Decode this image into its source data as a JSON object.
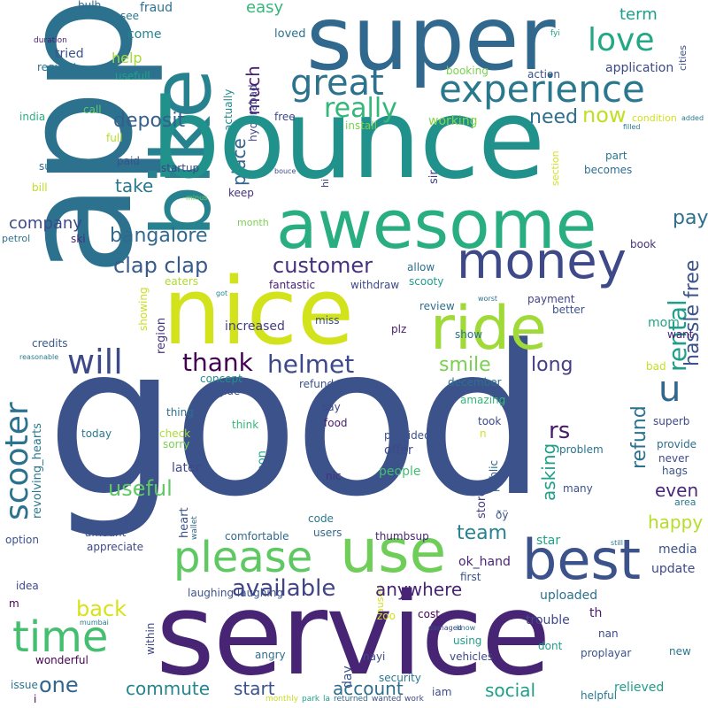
{
  "words": [
    {
      "text": "good",
      "color": "#3b528b"
    },
    {
      "text": "app",
      "color": "#2c728e"
    },
    {
      "text": "bounce",
      "color": "#21918c"
    },
    {
      "text": "service",
      "color": "#482475"
    },
    {
      "text": "super",
      "color": "#31688e"
    },
    {
      "text": "awesome",
      "color": "#28ae80"
    },
    {
      "text": "nice",
      "color": "#d2e21b"
    },
    {
      "text": "bike",
      "color": "#26828e"
    },
    {
      "text": "ride",
      "color": "#a0da39"
    },
    {
      "text": "money",
      "color": "#3e4989"
    },
    {
      "text": "use",
      "color": "#6ece58"
    },
    {
      "text": "best",
      "color": "#3b528b"
    },
    {
      "text": "please",
      "color": "#5ec962"
    },
    {
      "text": "time",
      "color": "#44bf70"
    },
    {
      "text": "experience",
      "color": "#2a788e"
    },
    {
      "text": "great",
      "color": "#2c728e"
    },
    {
      "text": "love",
      "color": "#22a884"
    },
    {
      "text": "will",
      "color": "#3e4989"
    },
    {
      "text": "scooter",
      "color": "#2c728e"
    },
    {
      "text": "bangalore",
      "color": "#31688e"
    },
    {
      "text": "clap clap",
      "color": "#375b8d"
    },
    {
      "text": "customer",
      "color": "#46327e"
    },
    {
      "text": "available",
      "color": "#414487"
    },
    {
      "text": "u",
      "color": "#31688e"
    },
    {
      "text": "rental",
      "color": "#1f9e89"
    },
    {
      "text": "hassle free",
      "color": "#3b528b"
    },
    {
      "text": "thank",
      "color": "#440154"
    },
    {
      "text": "helmet",
      "color": "#3e4989"
    },
    {
      "text": "really",
      "color": "#35b779"
    },
    {
      "text": "deposit",
      "color": "#355f8d"
    },
    {
      "text": "now",
      "color": "#c2df23"
    },
    {
      "text": "need",
      "color": "#2e6f8e"
    },
    {
      "text": "pay",
      "color": "#2e6f8e"
    },
    {
      "text": "company",
      "color": "#3e4989"
    },
    {
      "text": "take",
      "color": "#2a788e"
    },
    {
      "text": "much",
      "color": "#481f70"
    },
    {
      "text": "place",
      "color": "#32648e"
    },
    {
      "text": "smile",
      "color": "#7ad151"
    },
    {
      "text": "long",
      "color": "#433e85"
    },
    {
      "text": "useful",
      "color": "#5ec962"
    },
    {
      "text": "one",
      "color": "#32648e"
    },
    {
      "text": "back",
      "color": "#d8e219"
    },
    {
      "text": "team",
      "color": "#26828e"
    },
    {
      "text": "rs",
      "color": "#481a6c"
    },
    {
      "text": "refund",
      "color": "#2c728e"
    },
    {
      "text": "happy",
      "color": "#b5de2b"
    },
    {
      "text": "anywhere",
      "color": "#482475"
    },
    {
      "text": "commute",
      "color": "#25858e"
    },
    {
      "text": "start",
      "color": "#3b528b"
    },
    {
      "text": "account",
      "color": "#2e6f8e"
    },
    {
      "text": "social",
      "color": "#1f9e89"
    },
    {
      "text": "easy",
      "color": "#35b779"
    },
    {
      "text": "term",
      "color": "#1f9e89"
    },
    {
      "text": "help",
      "color": "#a5db36"
    },
    {
      "text": "fraud",
      "color": "#2c728e"
    },
    {
      "text": "bulb",
      "color": "#31688e"
    },
    {
      "text": "see",
      "color": "#2a788e"
    },
    {
      "text": "come",
      "color": "#25858e"
    },
    {
      "text": "tried",
      "color": "#3b528b"
    },
    {
      "text": "request",
      "color": "#2c728e"
    },
    {
      "text": "usefull",
      "color": "#1fa188"
    },
    {
      "text": "duration",
      "color": "#481f70"
    },
    {
      "text": "india",
      "color": "#29af7f"
    },
    {
      "text": "call",
      "color": "#5ec962"
    },
    {
      "text": "full",
      "color": "#b5de2b"
    },
    {
      "text": "paid",
      "color": "#3b528b"
    },
    {
      "text": "support",
      "color": "#2e6f8e"
    },
    {
      "text": "bill",
      "color": "#bddf26"
    },
    {
      "text": "startup",
      "color": "#414487"
    },
    {
      "text": "keep",
      "color": "#46337e"
    },
    {
      "text": "minus",
      "color": "#6ece58"
    },
    {
      "text": "month",
      "color": "#7ad151"
    },
    {
      "text": "ski",
      "color": "#482878"
    },
    {
      "text": "petrol",
      "color": "#2c728e"
    },
    {
      "text": "cities",
      "color": "#3b528b"
    },
    {
      "text": "fyi",
      "color": "#20a386"
    },
    {
      "text": "allow",
      "color": "#2e6f8e"
    },
    {
      "text": "booking",
      "color": "#7ad151"
    },
    {
      "text": "action",
      "color": "#3b528b"
    },
    {
      "text": "application",
      "color": "#3e4989"
    },
    {
      "text": "working",
      "color": "#86d549"
    },
    {
      "text": "condition",
      "color": "#d2e21b"
    },
    {
      "text": "install",
      "color": "#7ad151"
    },
    {
      "text": "filled",
      "color": "#2a788e"
    },
    {
      "text": "added",
      "color": "#2a788e"
    },
    {
      "text": "free",
      "color": "#3e4989"
    },
    {
      "text": "loved",
      "color": "#2c728e"
    },
    {
      "text": "hyderabad",
      "color": "#404688"
    },
    {
      "text": "actually",
      "color": "#238a8d"
    },
    {
      "text": "sir",
      "color": "#433e85"
    },
    {
      "text": "hi",
      "color": "#414487"
    },
    {
      "text": "bouce",
      "color": "#3e4989"
    },
    {
      "text": "section",
      "color": "#d2e21b"
    },
    {
      "text": "part",
      "color": "#2a788e"
    },
    {
      "text": "becomes",
      "color": "#2e6f8e"
    },
    {
      "text": "book",
      "color": "#46337e"
    },
    {
      "text": "eaters",
      "color": "#addc30"
    },
    {
      "text": "fantastic",
      "color": "#482173"
    },
    {
      "text": "withdraw",
      "color": "#3e4989"
    },
    {
      "text": "scooty",
      "color": "#1f9e89"
    },
    {
      "text": "got",
      "color": "#25858e"
    },
    {
      "text": "monthly",
      "color": "#c8e020"
    },
    {
      "text": "showing",
      "color": "#46337e"
    },
    {
      "text": "region",
      "color": "#2c728e"
    },
    {
      "text": "worst",
      "color": "#414487"
    },
    {
      "text": "payment",
      "color": "#2e6f8e"
    },
    {
      "text": "review",
      "color": "#3b528b"
    },
    {
      "text": "better",
      "color": "#3b528b"
    },
    {
      "text": "miss",
      "color": "#481a6c"
    },
    {
      "text": "plz",
      "color": "#2c728e"
    },
    {
      "text": "show",
      "color": "#20a386"
    },
    {
      "text": "mom",
      "color": "#481f70"
    },
    {
      "text": "want",
      "color": "#c2df23"
    },
    {
      "text": "bad",
      "color": "#433e85"
    },
    {
      "text": "increased",
      "color": "#375b8d"
    },
    {
      "text": "credits",
      "color": "#2a788e"
    },
    {
      "text": "reasonable",
      "color": "#21918c"
    },
    {
      "text": "concept",
      "color": "#3b528b"
    },
    {
      "text": "refunded",
      "color": "#2e6f8e"
    },
    {
      "text": "december",
      "color": "#2a788e"
    },
    {
      "text": "revolving_hearts",
      "color": "#2a788e"
    },
    {
      "text": "agide",
      "color": "#3b528b"
    },
    {
      "text": "thing",
      "color": "#2e6f8e"
    },
    {
      "text": "say",
      "color": "#3e4989"
    },
    {
      "text": "amazing",
      "color": "#35b779"
    },
    {
      "text": "superb",
      "color": "#3e4989"
    },
    {
      "text": "check",
      "color": "#addc30"
    },
    {
      "text": "sorry",
      "color": "#7ad151"
    },
    {
      "text": "today",
      "color": "#2a788e"
    },
    {
      "text": "think",
      "color": "#35b779"
    },
    {
      "text": "food",
      "color": "#481a6c"
    },
    {
      "text": "took",
      "color": "#3e4989"
    },
    {
      "text": "n",
      "color": "#d2e21b"
    },
    {
      "text": "provided",
      "color": "#3b528b"
    },
    {
      "text": "offer",
      "color": "#3e4989"
    },
    {
      "text": "provide",
      "color": "#2e6f8e"
    },
    {
      "text": "hags",
      "color": "#3b528b"
    },
    {
      "text": "problem",
      "color": "#2c728e"
    },
    {
      "text": "later",
      "color": "#3e4989"
    },
    {
      "text": "park",
      "color": "#20a386"
    },
    {
      "text": "people",
      "color": "#44bf70"
    },
    {
      "text": "la",
      "color": "#1f9e89"
    },
    {
      "text": "returned",
      "color": "#31688e"
    },
    {
      "text": "never",
      "color": "#3e4989"
    },
    {
      "text": "soon",
      "color": "#440154"
    },
    {
      "text": "nic",
      "color": "#46327e"
    },
    {
      "text": "asking",
      "color": "#3e4989"
    },
    {
      "text": "public",
      "color": "#3b528b"
    },
    {
      "text": "many",
      "color": "#433e85"
    },
    {
      "text": "heart",
      "color": "#2a788e"
    },
    {
      "text": "area",
      "color": "#3b528b"
    },
    {
      "text": "store",
      "color": "#2a788e"
    },
    {
      "text": "code",
      "color": "#31688e"
    },
    {
      "text": "users",
      "color": "#3b528b"
    },
    {
      "text": "ðÿ",
      "color": "#482878"
    },
    {
      "text": "wallet",
      "color": "#31688e"
    },
    {
      "text": "even",
      "color": "#3b528b"
    },
    {
      "text": "amount",
      "color": "#3e4989"
    },
    {
      "text": "appreciate",
      "color": "#31688e"
    },
    {
      "text": "comfortable",
      "color": "#482475"
    },
    {
      "text": "thumbsup",
      "color": "#1fa188"
    },
    {
      "text": "star",
      "color": "#2a788e"
    },
    {
      "text": "still",
      "color": "#3b528b"
    },
    {
      "text": "media",
      "color": "#3b528b"
    },
    {
      "text": "option",
      "color": "#3e4989"
    },
    {
      "text": "update",
      "color": "#482475"
    },
    {
      "text": "ok_hand",
      "color": "#3b528b"
    },
    {
      "text": "first",
      "color": "#3e4989"
    },
    {
      "text": "idea",
      "color": "#3b528b"
    },
    {
      "text": "laughing laughing",
      "color": "#2c728e"
    },
    {
      "text": "uploaded",
      "color": "#440154"
    },
    {
      "text": "m",
      "color": "#481a6c"
    },
    {
      "text": "th",
      "color": "#d2e21b"
    },
    {
      "text": "zoo",
      "color": "#440154"
    },
    {
      "text": "cost",
      "color": "#3e4989"
    },
    {
      "text": "trouble",
      "color": "#3e4989"
    },
    {
      "text": "damaged",
      "color": "#2a788e"
    },
    {
      "text": "mumbai",
      "color": "#3e4989"
    },
    {
      "text": "wanted",
      "color": "#3b528b"
    },
    {
      "text": "causes",
      "color": "#2e6f8e"
    },
    {
      "text": "know",
      "color": "#1f9e89"
    },
    {
      "text": "using",
      "color": "#3e4989"
    },
    {
      "text": "nan",
      "color": "#2a788e"
    },
    {
      "text": "new",
      "color": "#3b528b"
    },
    {
      "text": "within",
      "color": "#3e4989"
    },
    {
      "text": "nayi",
      "color": "#1f9e89"
    },
    {
      "text": "dont",
      "color": "#3b528b"
    },
    {
      "text": "proplayar",
      "color": "#2e6f8e"
    },
    {
      "text": "angry",
      "color": "#3b528b"
    },
    {
      "text": "work",
      "color": "#3e4989"
    },
    {
      "text": "vehicles",
      "color": "#440154"
    },
    {
      "text": "wonderful",
      "color": "#d2e21b"
    },
    {
      "text": "day",
      "color": "#2c728e"
    },
    {
      "text": "issue",
      "color": "#2a788e"
    },
    {
      "text": "security",
      "color": "#3e4989"
    },
    {
      "text": "iam",
      "color": "#2a788e"
    },
    {
      "text": "helpful",
      "color": "#1f9e89"
    },
    {
      "text": "relieved",
      "color": "#440154"
    },
    {
      "text": "i",
      "color": "#3b528b"
    }
  ]
}
